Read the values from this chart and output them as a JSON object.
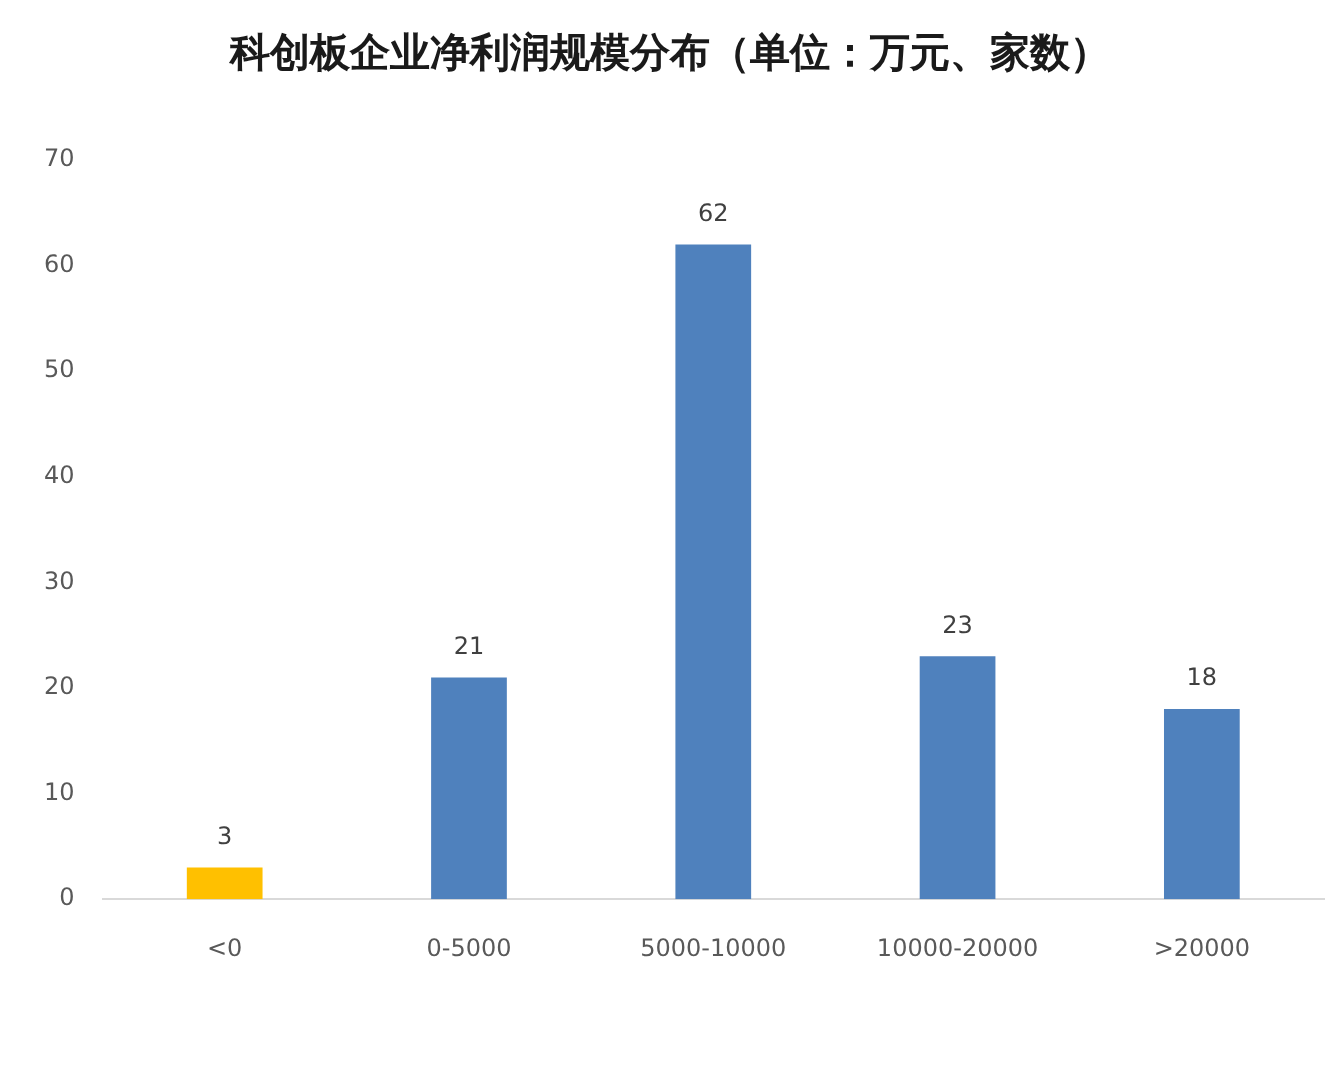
{
  "chart_data": {
    "type": "bar",
    "title": "科创板企业净利润规模分布（单位：万元、家数）",
    "categories": [
      "<0",
      "0-5000",
      "5000-10000",
      "10000-20000",
      ">20000"
    ],
    "values": [
      3,
      21,
      62,
      23,
      18
    ],
    "colors": [
      "#ffc000",
      "#4f81bd",
      "#4f81bd",
      "#4f81bd",
      "#4f81bd"
    ],
    "ylim": [
      0,
      70
    ],
    "yticks": [
      0,
      10,
      20,
      30,
      40,
      50,
      60,
      70
    ],
    "data_labels": true
  }
}
